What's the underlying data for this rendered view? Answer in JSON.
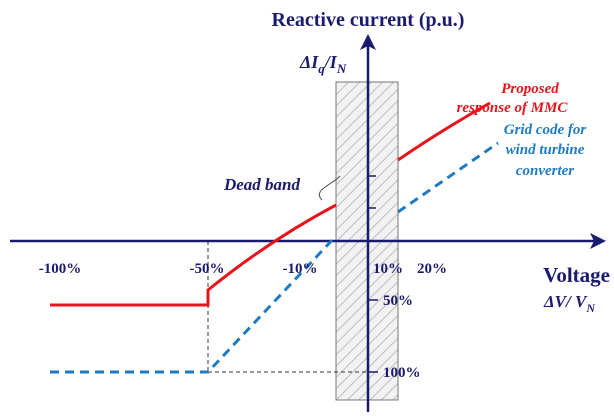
{
  "title": "Reactive current (p.u.)",
  "y_axis_label": {
    "main": "ΔI",
    "sub": "q",
    "over": "/I",
    "sub2": "N"
  },
  "x_axis_label": {
    "title": "Voltage",
    "main": "ΔV/ V",
    "sub": "N"
  },
  "x_ticks": [
    "-100%",
    "-50%",
    "-10%",
    "10%",
    "20%"
  ],
  "y_ticks": [
    "50%",
    "100%"
  ],
  "annotations": {
    "dead_band": "Dead band",
    "proposed": [
      "Proposed",
      "response of MMC"
    ],
    "grid_code": [
      "Grid code for",
      "wind turbine",
      "converter"
    ]
  }
}
